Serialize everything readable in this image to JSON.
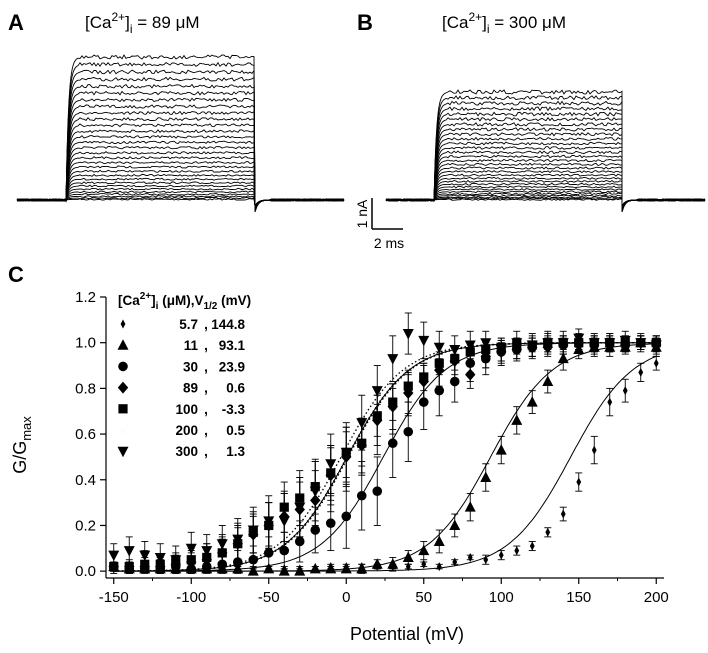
{
  "panels": {
    "a": {
      "letter": "A",
      "condition": "[Ca2+]i = 89 μM"
    },
    "b": {
      "letter": "B",
      "condition": "[Ca2+]i = 300 μM"
    },
    "c": {
      "letter": "C"
    }
  },
  "traces": {
    "a": {
      "n_sweeps": 30,
      "max_current_nA": 6.5
    },
    "b": {
      "n_sweeps": 30,
      "max_current_nA": 5.0
    }
  },
  "scale_bar": {
    "current": "1 nA",
    "time": "2 ms"
  },
  "chart_data": {
    "type": "scatter",
    "xlabel": "Potential (mV)",
    "ylabel": "G/Gmax",
    "xlim": [
      -155,
      205
    ],
    "ylim": [
      -0.03,
      1.2
    ],
    "xticks": [
      -150,
      -100,
      -50,
      0,
      50,
      100,
      150,
      200
    ],
    "yticks": [
      0.0,
      0.2,
      0.4,
      0.6,
      0.8,
      1.0,
      1.2
    ],
    "xtick_labels": [
      "-150",
      "-100",
      "-50",
      "0",
      "50",
      "100",
      "150",
      "200"
    ],
    "ytick_labels": [
      "0.0",
      "0.2",
      "0.4",
      "0.6",
      "0.8",
      "1.0",
      "1.2"
    ],
    "legend_header": "[Ca2+]i (μM),V1/2 (mV)",
    "legend_position": "top-left",
    "series": [
      {
        "ca": "5.7",
        "v_half_label": "144.8",
        "v_half": 144.8,
        "slope": 20,
        "marker": "diamond-small",
        "fit": "solid",
        "x": [
          -150,
          -140,
          -130,
          -120,
          -110,
          -100,
          -90,
          -80,
          -70,
          -60,
          -50,
          -40,
          -30,
          -20,
          -10,
          0,
          10,
          20,
          30,
          40,
          50,
          60,
          70,
          80,
          90,
          100,
          110,
          120,
          130,
          140,
          150,
          160,
          170,
          180,
          190,
          200
        ],
        "y": [
          0.01,
          0.01,
          0.01,
          0.01,
          0.02,
          0.01,
          0.01,
          0.02,
          0.01,
          0.01,
          0.01,
          0.01,
          0.01,
          0.01,
          0.02,
          0.02,
          0.02,
          0.02,
          0.02,
          0.02,
          0.03,
          0.02,
          0.04,
          0.06,
          0.05,
          0.07,
          0.09,
          0.11,
          0.17,
          0.25,
          0.39,
          0.53,
          0.74,
          0.79,
          0.87,
          0.91
        ],
        "err": [
          0.01,
          0.01,
          0.01,
          0.01,
          0.01,
          0.01,
          0.01,
          0.01,
          0.01,
          0.01,
          0.01,
          0.01,
          0.01,
          0.01,
          0.01,
          0.01,
          0.01,
          0.01,
          0.01,
          0.01,
          0.01,
          0.01,
          0.01,
          0.01,
          0.02,
          0.02,
          0.02,
          0.02,
          0.02,
          0.03,
          0.04,
          0.06,
          0.06,
          0.05,
          0.04,
          0.03
        ]
      },
      {
        "ca": "11",
        "v_half_label": "93.1",
        "v_half": 93.1,
        "slope": 20,
        "marker": "triangle-up",
        "fit": "solid",
        "x": [
          -150,
          -140,
          -130,
          -120,
          -110,
          -100,
          -90,
          -80,
          -70,
          -60,
          -50,
          -40,
          -30,
          -20,
          -10,
          0,
          10,
          20,
          30,
          40,
          50,
          60,
          70,
          80,
          90,
          100,
          110,
          120,
          130,
          140,
          150,
          160,
          170,
          180,
          190,
          200
        ],
        "y": [
          0.02,
          0.01,
          0.01,
          0.01,
          0.01,
          0.01,
          0.01,
          0.01,
          0.01,
          0.0,
          0.01,
          0.0,
          0.0,
          0.01,
          0.01,
          0.01,
          0.01,
          0.03,
          0.03,
          0.06,
          0.09,
          0.13,
          0.2,
          0.28,
          0.41,
          0.53,
          0.66,
          0.74,
          0.83,
          0.93,
          0.97,
          0.98,
          0.98,
          0.98,
          1.0,
          0.98
        ],
        "err": [
          0.02,
          0.01,
          0.01,
          0.01,
          0.01,
          0.01,
          0.01,
          0.01,
          0.01,
          0.01,
          0.01,
          0.01,
          0.01,
          0.01,
          0.01,
          0.01,
          0.02,
          0.02,
          0.03,
          0.03,
          0.04,
          0.05,
          0.05,
          0.06,
          0.06,
          0.06,
          0.06,
          0.05,
          0.05,
          0.05,
          0.04,
          0.04,
          0.04,
          0.03,
          0.03,
          0.04
        ]
      },
      {
        "ca": "30",
        "v_half_label": "23.9",
        "v_half": 23.9,
        "slope": 20,
        "marker": "circle",
        "fit": "solid",
        "x": [
          -150,
          -140,
          -130,
          -120,
          -110,
          -100,
          -90,
          -80,
          -70,
          -60,
          -50,
          -40,
          -30,
          -20,
          -10,
          0,
          10,
          20,
          30,
          40,
          50,
          60,
          70,
          80,
          90,
          100,
          110,
          120,
          130,
          140,
          150,
          160,
          170,
          180,
          190,
          200
        ],
        "y": [
          0.02,
          0.01,
          0.01,
          0.01,
          0.02,
          0.01,
          0.02,
          0.03,
          0.04,
          0.05,
          0.08,
          0.09,
          0.13,
          0.18,
          0.21,
          0.24,
          0.33,
          0.35,
          0.56,
          0.61,
          0.74,
          0.79,
          0.83,
          0.91,
          0.93,
          0.96,
          0.97,
          0.98,
          1.0,
          0.99,
          1.0,
          0.99,
          1.0,
          0.99,
          1.0,
          1.0
        ],
        "err": [
          0.02,
          0.02,
          0.02,
          0.02,
          0.02,
          0.02,
          0.03,
          0.04,
          0.05,
          0.06,
          0.07,
          0.08,
          0.09,
          0.1,
          0.12,
          0.14,
          0.15,
          0.15,
          0.15,
          0.13,
          0.12,
          0.11,
          0.09,
          0.08,
          0.07,
          0.06,
          0.05,
          0.05,
          0.04,
          0.04,
          0.04,
          0.04,
          0.04,
          0.03,
          0.03,
          0.03
        ]
      },
      {
        "ca": "89",
        "v_half_label": "0.6",
        "v_half": 0.6,
        "slope": 20,
        "marker": "diamond",
        "fit": "solid",
        "x": [
          -150,
          -140,
          -130,
          -120,
          -110,
          -100,
          -90,
          -80,
          -70,
          -60,
          -50,
          -40,
          -30,
          -20,
          -10,
          0,
          10,
          20,
          30,
          40,
          50,
          60,
          70,
          80,
          90,
          100,
          110,
          120,
          130,
          140,
          150,
          160,
          170,
          180,
          190,
          200
        ],
        "y": [
          0.02,
          0.02,
          0.02,
          0.02,
          0.03,
          0.04,
          0.05,
          0.08,
          0.12,
          0.16,
          0.2,
          0.24,
          0.27,
          0.31,
          0.42,
          0.5,
          0.55,
          0.66,
          0.72,
          0.78,
          0.83,
          0.88,
          0.92,
          0.86,
          0.94,
          0.96,
          0.97,
          0.98,
          0.98,
          0.99,
          1.0,
          0.99,
          1.0,
          0.99,
          1.0,
          0.99
        ],
        "err": [
          0.02,
          0.02,
          0.02,
          0.03,
          0.03,
          0.04,
          0.05,
          0.06,
          0.07,
          0.08,
          0.1,
          0.11,
          0.12,
          0.13,
          0.13,
          0.13,
          0.12,
          0.11,
          0.1,
          0.09,
          0.08,
          0.07,
          0.06,
          0.06,
          0.05,
          0.05,
          0.04,
          0.04,
          0.04,
          0.04,
          0.03,
          0.03,
          0.03,
          0.03,
          0.03,
          0.03
        ]
      },
      {
        "ca": "100",
        "v_half_label": "-3.3",
        "v_half": -3.3,
        "slope": 20,
        "marker": "square",
        "fit": "dotted",
        "x": [
          -150,
          -140,
          -130,
          -120,
          -110,
          -100,
          -90,
          -80,
          -70,
          -60,
          -50,
          -40,
          -30,
          -20,
          -10,
          0,
          10,
          20,
          30,
          40,
          50,
          60,
          70,
          80,
          90,
          100,
          110,
          120,
          130,
          140,
          150,
          160,
          170,
          180,
          190,
          200
        ],
        "y": [
          0.02,
          0.02,
          0.03,
          0.03,
          0.04,
          0.05,
          0.06,
          0.08,
          0.12,
          0.17,
          0.2,
          0.28,
          0.32,
          0.37,
          0.43,
          0.52,
          0.56,
          0.68,
          0.74,
          0.81,
          0.85,
          0.91,
          0.93,
          0.96,
          0.97,
          0.98,
          0.99,
          0.99,
          1.0,
          1.0,
          1.0,
          1.0,
          1.0,
          1.0,
          1.0,
          1.0
        ],
        "err": [
          0.02,
          0.02,
          0.03,
          0.03,
          0.04,
          0.05,
          0.06,
          0.07,
          0.08,
          0.09,
          0.1,
          0.11,
          0.12,
          0.12,
          0.12,
          0.11,
          0.1,
          0.09,
          0.08,
          0.07,
          0.06,
          0.05,
          0.05,
          0.04,
          0.04,
          0.03,
          0.03,
          0.03,
          0.03,
          0.03,
          0.03,
          0.03,
          0.03,
          0.03,
          0.03,
          0.03
        ]
      },
      {
        "ca": "200",
        "v_half_label": "0.5",
        "v_half": 0.5,
        "slope": 20,
        "marker": "bowtie",
        "fit": "dotted",
        "x": [
          -150,
          -140,
          -130,
          -120,
          -110,
          -100,
          -90,
          -80,
          -70,
          -60,
          -50,
          -40,
          -30,
          -20,
          -10,
          0,
          10,
          20,
          30,
          40,
          50,
          60,
          70,
          80,
          90,
          100,
          110,
          120,
          130,
          140,
          150,
          160,
          170,
          180,
          190,
          200
        ],
        "y": [
          0.01,
          0.02,
          0.05,
          0.02,
          0.03,
          0.04,
          0.06,
          0.09,
          0.13,
          0.15,
          0.19,
          0.22,
          0.28,
          0.34,
          0.4,
          0.48,
          0.54,
          0.62,
          0.7,
          0.77,
          0.82,
          0.86,
          0.89,
          0.92,
          0.94,
          0.96,
          0.97,
          0.98,
          0.99,
          0.99,
          1.0,
          1.0,
          1.0,
          1.0,
          1.0,
          1.0
        ],
        "err": [
          0.02,
          0.03,
          0.04,
          0.03,
          0.04,
          0.05,
          0.06,
          0.07,
          0.08,
          0.1,
          0.11,
          0.12,
          0.13,
          0.14,
          0.14,
          0.13,
          0.12,
          0.11,
          0.1,
          0.09,
          0.08,
          0.07,
          0.06,
          0.05,
          0.05,
          0.04,
          0.04,
          0.04,
          0.03,
          0.03,
          0.03,
          0.03,
          0.03,
          0.03,
          0.03,
          0.03
        ]
      },
      {
        "ca": "300",
        "v_half_label": "1.3",
        "v_half": 1.3,
        "slope": 20,
        "marker": "triangle-down",
        "fit": "dotted",
        "x": [
          -150,
          -140,
          -130,
          -120,
          -110,
          -100,
          -90,
          -80,
          -70,
          -60,
          -50,
          -40,
          -30,
          -20,
          -10,
          0,
          10,
          20,
          30,
          40,
          50,
          60,
          70,
          80,
          90,
          100,
          110,
          120,
          130,
          140,
          150,
          160,
          170,
          180,
          190,
          200
        ],
        "y": [
          0.07,
          0.09,
          0.07,
          0.06,
          0.05,
          0.1,
          0.09,
          0.12,
          0.14,
          0.18,
          0.22,
          0.22,
          0.28,
          0.35,
          0.47,
          0.52,
          0.65,
          0.79,
          0.93,
          1.04,
          1.01,
          0.98,
          0.97,
          0.99,
          1.0,
          0.97,
          1.0,
          0.99,
          1.0,
          1.0,
          1.02,
          1.0,
          1.0,
          1.01,
          1.0,
          0.99
        ],
        "err": [
          0.05,
          0.06,
          0.06,
          0.06,
          0.06,
          0.07,
          0.07,
          0.08,
          0.09,
          0.1,
          0.11,
          0.12,
          0.13,
          0.13,
          0.13,
          0.13,
          0.12,
          0.11,
          0.1,
          0.09,
          0.08,
          0.07,
          0.06,
          0.06,
          0.05,
          0.05,
          0.05,
          0.05,
          0.05,
          0.05,
          0.04,
          0.04,
          0.04,
          0.04,
          0.04,
          0.04
        ]
      }
    ]
  }
}
